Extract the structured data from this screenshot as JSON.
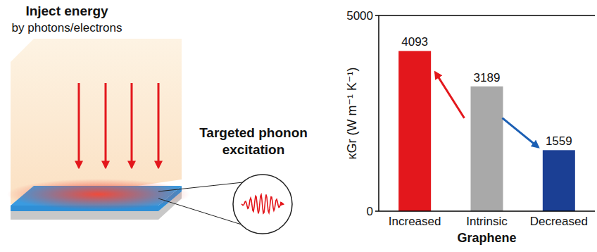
{
  "diagram": {
    "title": "Inject energy",
    "subtitle": "by photons/electrons",
    "label": "Targeted phonon excitation"
  },
  "chart_data": {
    "type": "bar",
    "ylabel": "κGr (W m⁻¹ K⁻¹)",
    "xlabel": "Graphene",
    "categories": [
      "Increased",
      "Intrinsic",
      "Decreased"
    ],
    "values": [
      4093,
      3189,
      1559
    ],
    "colors": [
      "#e3171c",
      "#a9a9a9",
      "#1b3f94"
    ],
    "ylim": [
      0,
      5000
    ],
    "yticks": [
      0,
      5000
    ],
    "grid": false,
    "data_labels": true
  }
}
